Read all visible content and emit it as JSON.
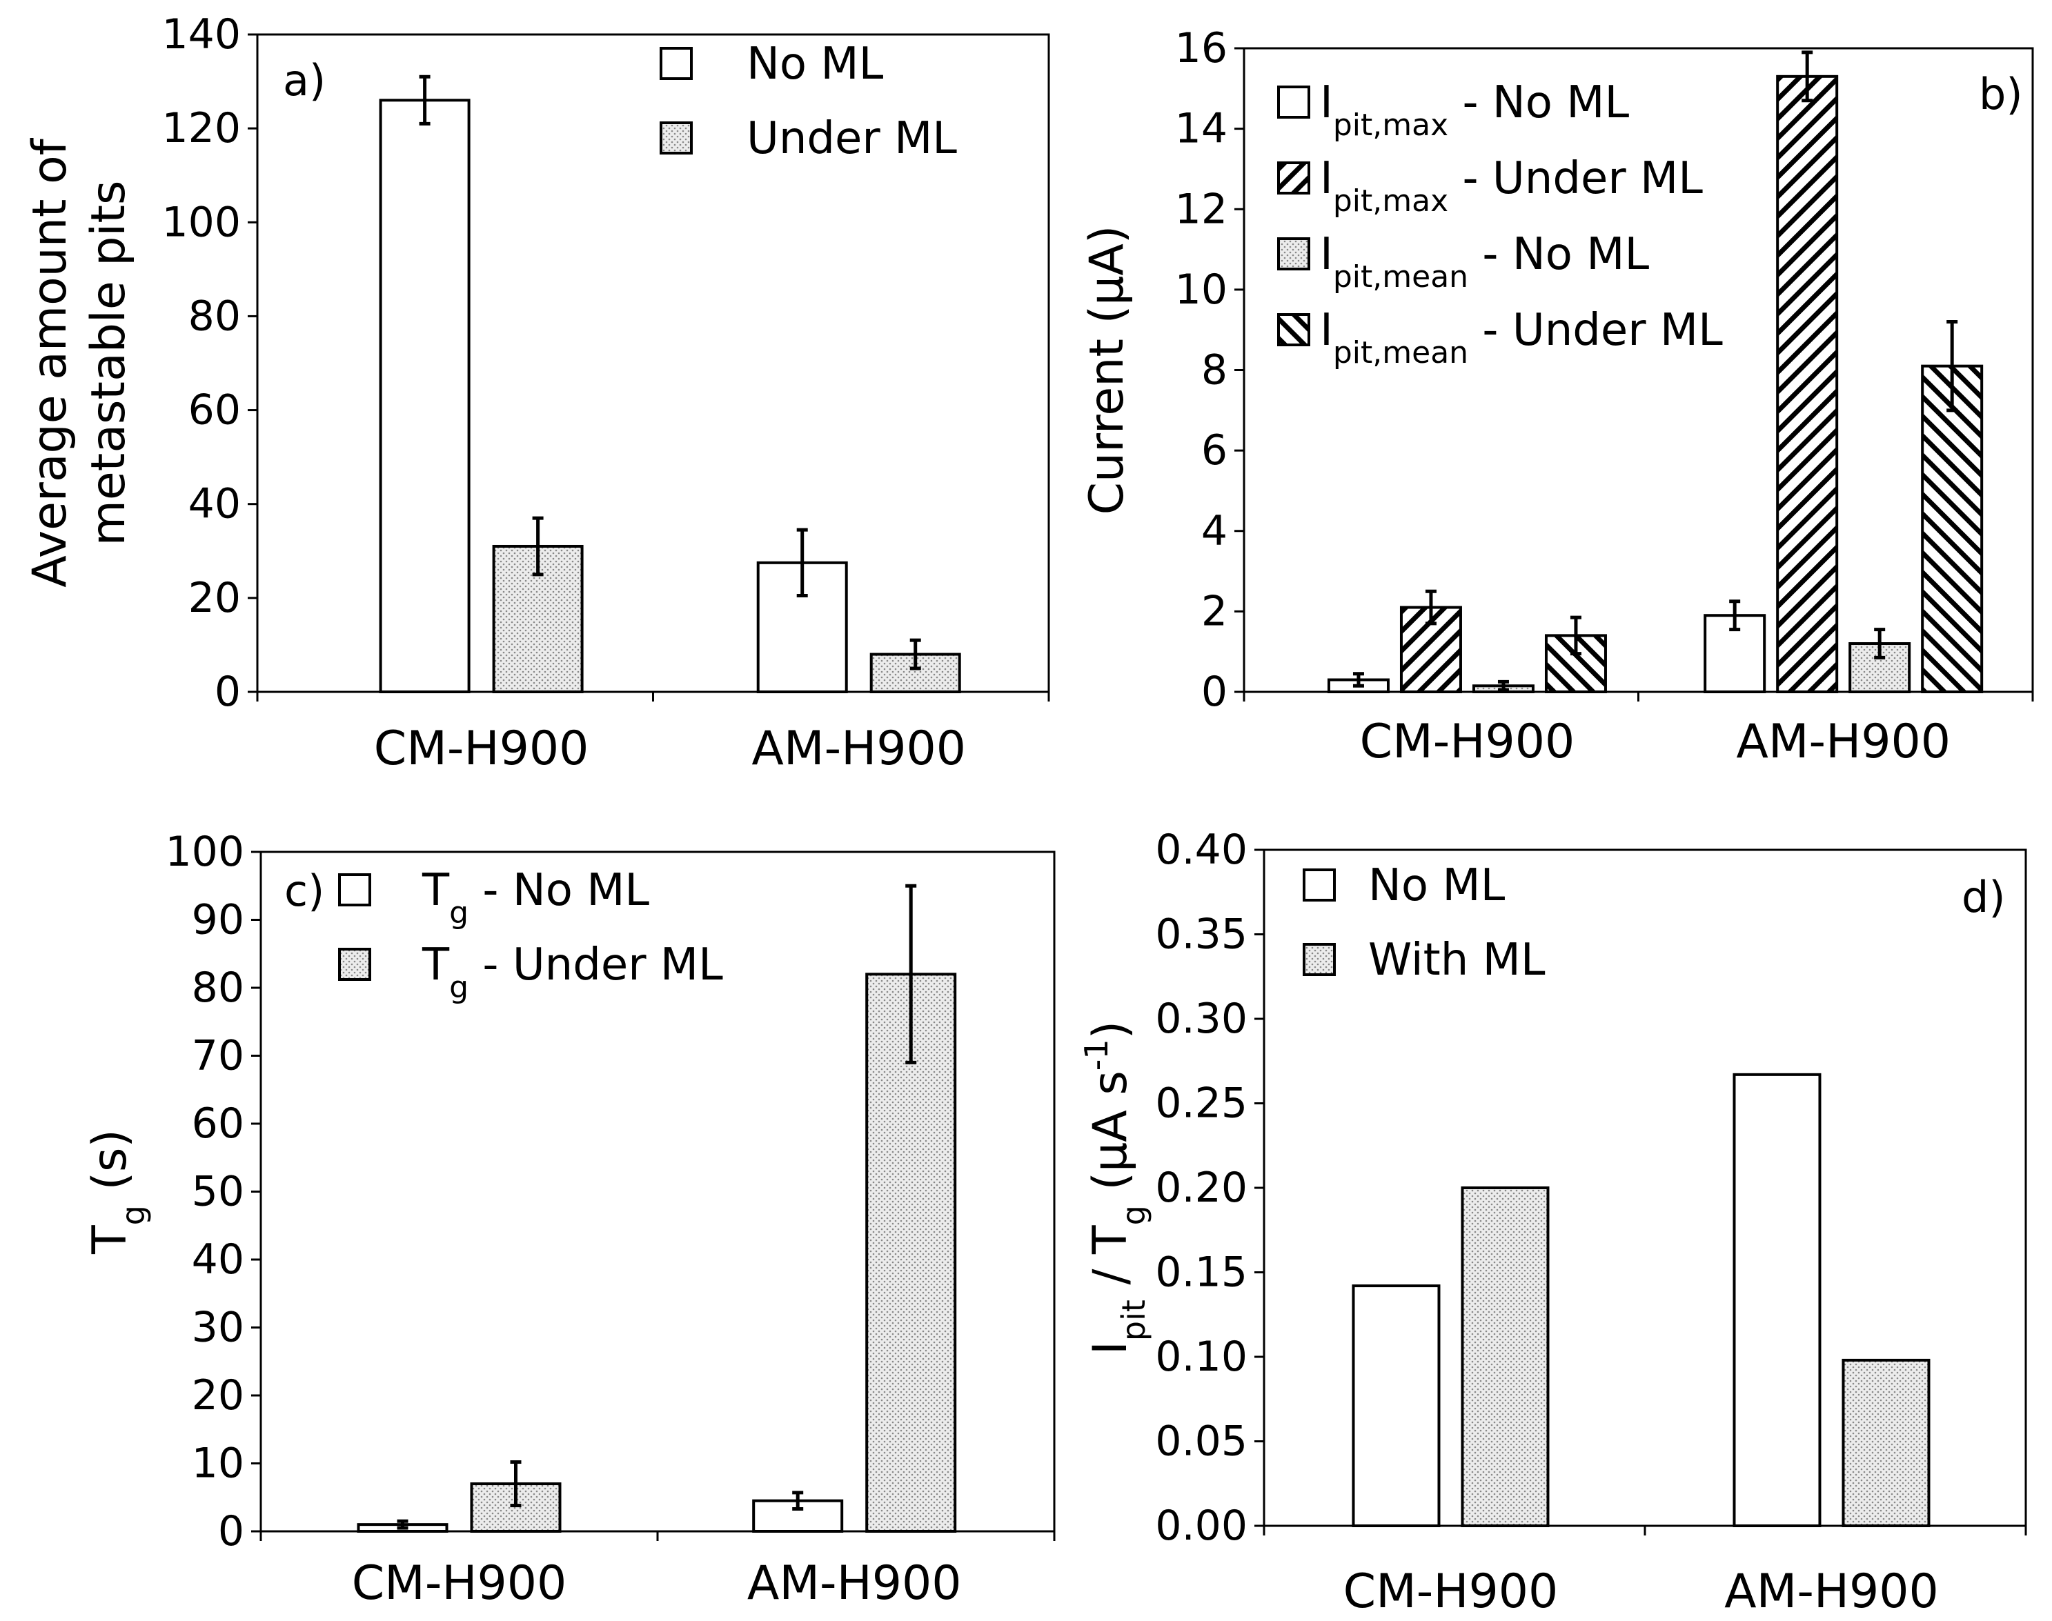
{
  "chart_data": [
    {
      "type": "bar",
      "panel_label": "a)",
      "categories": [
        "CM-H900",
        "AM-H900"
      ],
      "ylabel_lines": [
        "Average amount of",
        "metastable pits"
      ],
      "ylim": [
        0,
        140
      ],
      "yticks": [
        "0",
        "20",
        "40",
        "60",
        "80",
        "100",
        "120",
        "140"
      ],
      "series": [
        {
          "name": "No ML",
          "pattern": "white",
          "values": [
            126,
            27.5
          ],
          "errors": [
            5,
            7
          ]
        },
        {
          "name": "Under ML",
          "pattern": "dots",
          "values": [
            31,
            8
          ],
          "errors": [
            6,
            3
          ]
        }
      ],
      "legend_position": "top-right"
    },
    {
      "type": "bar",
      "panel_label": "b)",
      "categories": [
        "CM-H900",
        "AM-H900"
      ],
      "ylabel": "Current (μA)",
      "ylim": [
        0,
        16
      ],
      "yticks": [
        "0",
        "2",
        "4",
        "6",
        "8",
        "10",
        "12",
        "14",
        "16"
      ],
      "series": [
        {
          "name_main": "I",
          "name_sub": "pit,max",
          "name_rest": " - No ML",
          "pattern": "white",
          "values": [
            0.3,
            1.9
          ],
          "errors": [
            0.15,
            0.35
          ]
        },
        {
          "name_main": "I",
          "name_sub": "pit,max",
          "name_rest": " - Under ML",
          "pattern": "hatch-right",
          "values": [
            2.1,
            15.3
          ],
          "errors": [
            0.4,
            0.6
          ]
        },
        {
          "name_main": "I",
          "name_sub": "pit,mean",
          "name_rest": " - No ML",
          "pattern": "dots",
          "values": [
            0.15,
            1.2
          ],
          "errors": [
            0.1,
            0.35
          ]
        },
        {
          "name_main": "I",
          "name_sub": "pit,mean",
          "name_rest": " - Under ML",
          "pattern": "hatch-left",
          "values": [
            1.4,
            8.1
          ],
          "errors": [
            0.45,
            1.1
          ]
        }
      ],
      "legend_position": "top-left"
    },
    {
      "type": "bar",
      "panel_label": "c)",
      "categories": [
        "CM-H900",
        "AM-H900"
      ],
      "ylabel_main": "T",
      "ylabel_sub": "g",
      "ylabel_rest": " (s)",
      "ylim": [
        0,
        100
      ],
      "yticks": [
        "0",
        "10",
        "20",
        "30",
        "40",
        "50",
        "60",
        "70",
        "80",
        "90",
        "100"
      ],
      "series": [
        {
          "name_main": "T",
          "name_sub": "g",
          "name_rest": " - No ML",
          "pattern": "white",
          "values": [
            1,
            4.5
          ],
          "errors": [
            0.5,
            1.2
          ]
        },
        {
          "name_main": "T",
          "name_sub": "g",
          "name_rest": " - Under ML",
          "pattern": "dots",
          "values": [
            7,
            82
          ],
          "errors": [
            3.2,
            13
          ]
        }
      ],
      "legend_position": "top-left"
    },
    {
      "type": "bar",
      "panel_label": "d)",
      "categories": [
        "CM-H900",
        "AM-H900"
      ],
      "ylabel_parts": [
        {
          "t": "I",
          "s": "main"
        },
        {
          "t": "pit",
          "s": "sub"
        },
        {
          "t": " / T",
          "s": "main"
        },
        {
          "t": "g",
          "s": "sub"
        },
        {
          "t": " (μA s",
          "s": "main"
        },
        {
          "t": "-1",
          "s": "sup"
        },
        {
          "t": ")",
          "s": "main"
        }
      ],
      "ylim": [
        0,
        0.4
      ],
      "yticks": [
        "0.00",
        "0.05",
        "0.10",
        "0.15",
        "0.20",
        "0.25",
        "0.30",
        "0.35",
        "0.40"
      ],
      "series": [
        {
          "name": "No ML",
          "pattern": "white",
          "values": [
            0.142,
            0.267
          ]
        },
        {
          "name": "With ML",
          "pattern": "dots",
          "values": [
            0.2,
            0.098
          ]
        }
      ],
      "legend_position": "top-left"
    }
  ]
}
